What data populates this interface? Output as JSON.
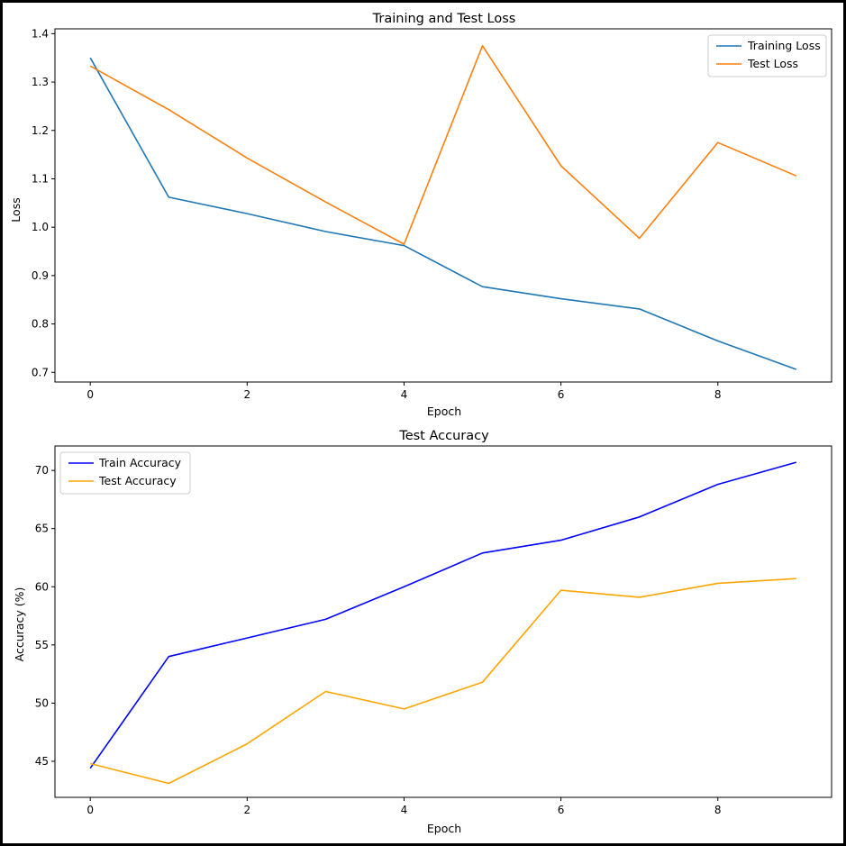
{
  "chart_data": [
    {
      "type": "line",
      "title": "Training and Test Loss",
      "xlabel": "Epoch",
      "ylabel": "Loss",
      "x": [
        0,
        1,
        2,
        3,
        4,
        5,
        6,
        7,
        8,
        9
      ],
      "xticks": [
        "0",
        "2",
        "4",
        "6",
        "8"
      ],
      "yticks": [
        "0.7",
        "0.8",
        "0.9",
        "1.0",
        "1.1",
        "1.2",
        "1.3",
        "1.4"
      ],
      "xlim": [
        -0.45,
        9.45
      ],
      "ylim": [
        0.68,
        1.41
      ],
      "legend": "upper-right",
      "grid": false,
      "series": [
        {
          "name": "Training Loss",
          "color": "#1f77b4",
          "values": [
            1.35,
            1.062,
            1.028,
            0.991,
            0.962,
            0.877,
            0.852,
            0.831,
            0.765,
            0.706
          ]
        },
        {
          "name": "Test Loss",
          "color": "#ff7f0e",
          "values": [
            1.333,
            1.243,
            1.143,
            1.052,
            0.965,
            1.375,
            1.127,
            0.977,
            1.175,
            1.106
          ]
        }
      ]
    },
    {
      "type": "line",
      "title": "Test Accuracy",
      "xlabel": "Epoch",
      "ylabel": "Accuracy (%)",
      "x": [
        0,
        1,
        2,
        3,
        4,
        5,
        6,
        7,
        8,
        9
      ],
      "xticks": [
        "0",
        "2",
        "4",
        "6",
        "8"
      ],
      "yticks": [
        "45",
        "50",
        "55",
        "60",
        "65",
        "70"
      ],
      "xlim": [
        -0.45,
        9.45
      ],
      "ylim": [
        41.9,
        72.1
      ],
      "legend": "upper-left",
      "grid": false,
      "series": [
        {
          "name": "Train Accuracy",
          "color": "#0000ff",
          "values": [
            44.4,
            54.0,
            55.6,
            57.2,
            60.0,
            62.9,
            64.0,
            66.0,
            68.8,
            70.7
          ]
        },
        {
          "name": "Test Accuracy",
          "color": "#ffa500",
          "values": [
            44.8,
            43.1,
            46.5,
            51.0,
            49.5,
            51.8,
            59.7,
            59.1,
            60.3,
            60.7
          ]
        }
      ]
    }
  ]
}
